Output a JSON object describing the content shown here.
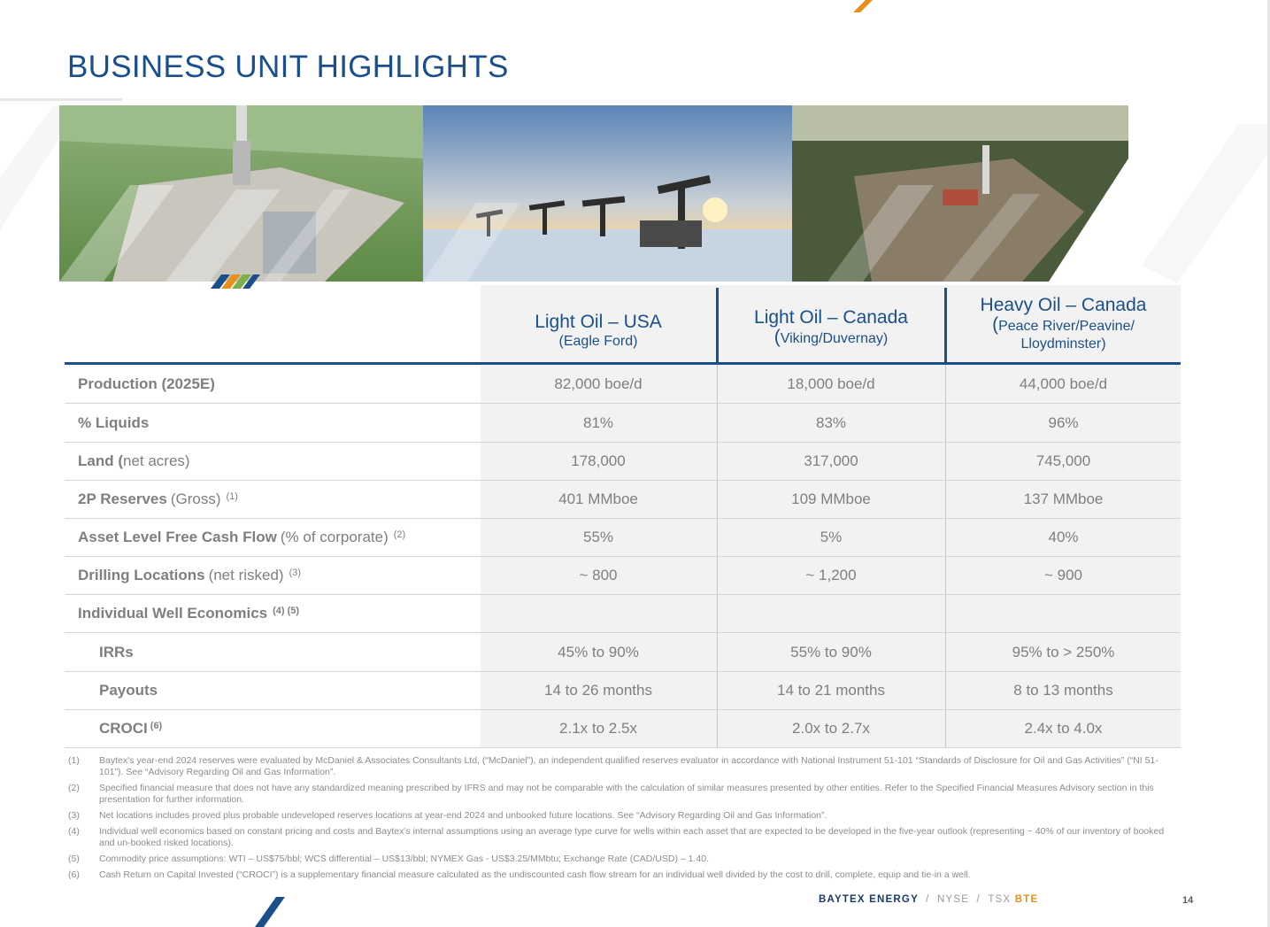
{
  "title": "BUSINESS UNIT HIGHLIGHTS",
  "colors": {
    "brand_blue": "#1a4f8b",
    "accent_orange": "#e8901c",
    "label_gray": "#7f7f7f"
  },
  "photos": [
    {
      "name": "drilling-rig-aerial-photo",
      "depicts": "aerial view of drilling rig on green field pad"
    },
    {
      "name": "pumpjacks-sunset-photo",
      "depicts": "row of pumpjacks at sunset"
    },
    {
      "name": "forest-drill-site-photo",
      "depicts": "aerial view of drill site in forest clearing"
    }
  ],
  "table": {
    "columns": [
      {
        "main": "Light Oil – USA",
        "sub": "(Eagle Ford)",
        "paren": "",
        "sub2": ""
      },
      {
        "main": "Light Oil – Canada",
        "sub": "Viking/Duvernay)",
        "paren": "(",
        "sub2": ""
      },
      {
        "main": "Heavy Oil – Canada",
        "sub": "Peace River/Peavine/",
        "paren": "(",
        "sub2": "Lloydminster)"
      }
    ],
    "rows": [
      {
        "label": "Production (2025E)",
        "rest": "",
        "note": "",
        "values": [
          "82,000 boe/d",
          "18,000 boe/d",
          "44,000 boe/d"
        ]
      },
      {
        "label": "% Liquids",
        "rest": "",
        "note": "",
        "values": [
          "81%",
          "83%",
          "96%"
        ]
      },
      {
        "label": "Land (",
        "rest": "net acres)",
        "note": "",
        "values": [
          "178,000",
          "317,000",
          "745,000"
        ]
      },
      {
        "label": "2P Reserves",
        "rest": "(Gross)",
        "note": "(1)",
        "values": [
          "401 MMboe",
          "109 MMboe",
          "137 MMboe"
        ]
      },
      {
        "label": "Asset Level Free Cash Flow",
        "rest": "(% of corporate)",
        "note": "(2)",
        "values": [
          "55%",
          "5%",
          "40%"
        ]
      },
      {
        "label": "Drilling Locations",
        "rest": "(net risked)",
        "note": "(3)",
        "values": [
          "~ 800",
          "~ 1,200",
          "~ 900"
        ]
      },
      {
        "label": "Individual Well Economics",
        "rest": "",
        "note": "(4) (5)",
        "values": [
          "",
          "",
          ""
        ]
      },
      {
        "label": "IRRs",
        "rest": "",
        "note": "",
        "values": [
          "45% to 90%",
          "55% to 90%",
          "95% to > 250%"
        ]
      },
      {
        "label": "Payouts",
        "rest": "",
        "note": "",
        "values": [
          "14 to 26 months",
          "14 to 21 months",
          "8 to 13 months"
        ]
      },
      {
        "label": "CROCI",
        "rest": "",
        "note": "(6)",
        "values": [
          "2.1x to 2.5x",
          "2.0x to 2.7x",
          "2.4x to 4.0x"
        ]
      }
    ]
  },
  "footnotes": [
    {
      "num": "(1)",
      "text": "Baytex’s year-end 2024 reserves were evaluated by McDaniel & Associates Consultants Ltd, (“McDaniel”), an independent qualified reserves evaluator in accordance with National Instrument 51-101 “Standards of Disclosure for Oil and Gas Activities” (“NI 51-101”).  See “Advisory Regarding Oil and Gas Information”."
    },
    {
      "num": "(2)",
      "text": "Specified financial measure that does not have any standardized meaning prescribed by IFRS and may not be comparable with the calculation of similar measures presented by other entities. Refer to the Specified Financial Measures Advisory section in this presentation for further information."
    },
    {
      "num": "(3)",
      "text": "Net locations includes proved plus probable undeveloped reserves locations at year-end 2024 and unbooked future locations. See “Advisory Regarding Oil and Gas Information”."
    },
    {
      "num": "(4)",
      "text": "Individual well economics based on constant pricing and costs and Baytex’s internal assumptions using an average type curve for wells within each asset that are expected to be developed in the five-year outlook (representing ~ 40% of our inventory of booked and un-booked risked locations)."
    },
    {
      "num": "(5)",
      "text": "Commodity price assumptions:  WTI – US$75/bbl; WCS differential – US$13/bbl; NYMEX Gas - US$3.25/MMbtu; Exchange Rate (CAD/USD) – 1.40."
    },
    {
      "num": "(6)",
      "text": "Cash Return on Capital Invested (“CROCI”) is a supplementary financial measure calculated as the undiscounted cash flow stream for an individual well divided by the cost to drill, complete, equip and tie-in a well."
    }
  ],
  "footer": {
    "company": "BAYTEX ENERGY",
    "sep": "/",
    "ex1": "NYSE",
    "ex2": "TSX",
    "ticker": "BTE"
  },
  "page_number": "14"
}
